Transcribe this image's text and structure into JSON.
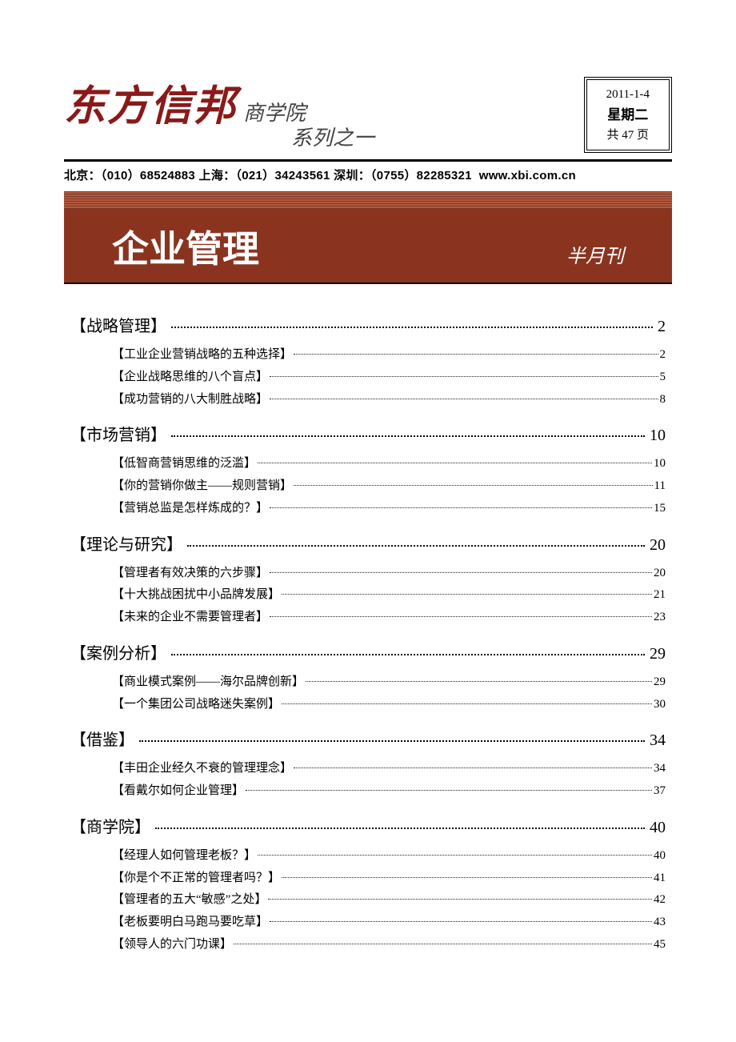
{
  "header": {
    "brand": "东方信邦",
    "subtitle1": "商学院",
    "subtitle2": "系列之一",
    "date": "2011-1-4",
    "weekday": "星期二",
    "pages": "共 47 页"
  },
  "contact": {
    "beijing_label": "北京：",
    "beijing_phone": "（010）68524883",
    "shanghai_label": " 上海：",
    "shanghai_phone": "（021）34243561",
    "shenzhen_label": " 深圳：",
    "shenzhen_phone": "（0755）82285321",
    "url": "www.xbi.com.cn"
  },
  "banner": {
    "title": "企业管理",
    "subtitle": "半月刊",
    "bg_color": "#8a3420",
    "accent_color": "#c94d30",
    "title_color": "#ffffff"
  },
  "colors": {
    "brand": "#8a1a1a",
    "banner_bg": "#8a3420",
    "banner_stripe1": "#7a3826",
    "banner_stripe2": "#b5593f",
    "text": "#000000",
    "background": "#ffffff"
  },
  "typography": {
    "brand_fontsize": 52,
    "subtitle_fontsize": 26,
    "banner_title_fontsize": 46,
    "banner_sub_fontsize": 24,
    "section_fontsize": 20,
    "item_fontsize": 15,
    "contact_fontsize": 15,
    "datebox_fontsize": 15
  },
  "toc": [
    {
      "title": "【战略管理】",
      "page": "2",
      "items": [
        {
          "title": "【工业企业营销战略的五种选择】",
          "page": "2"
        },
        {
          "title": "【企业战略思维的八个盲点】",
          "page": "5"
        },
        {
          "title": "【成功营销的八大制胜战略】",
          "page": "8"
        }
      ]
    },
    {
      "title": "【市场营销】",
      "page": "10",
      "items": [
        {
          "title": "【低智商营销思维的泛滥】",
          "page": "10"
        },
        {
          "title": "【你的营销你做主——规则营销】",
          "page": "11"
        },
        {
          "title": "【营销总监是怎样炼成的？】",
          "page": "15"
        }
      ]
    },
    {
      "title": "【理论与研究】",
      "page": "20",
      "items": [
        {
          "title": "【管理者有效决策的六步骤】",
          "page": "20"
        },
        {
          "title": "【十大挑战困扰中小品牌发展】",
          "page": "21"
        },
        {
          "title": "【未来的企业不需要管理者】",
          "page": "23"
        }
      ]
    },
    {
      "title": "【案例分析】",
      "page": "29",
      "items": [
        {
          "title": "【商业模式案例——海尔品牌创新】",
          "page": "29"
        },
        {
          "title": "【一个集团公司战略迷失案例】",
          "page": "30"
        }
      ]
    },
    {
      "title": "【借鉴】",
      "page": "34",
      "items": [
        {
          "title": "【丰田企业经久不衰的管理理念】",
          "page": "34"
        },
        {
          "title": "【看戴尔如何企业管理】",
          "page": "37"
        }
      ]
    },
    {
      "title": "【商学院】",
      "page": "40",
      "items": [
        {
          "title": "【经理人如何管理老板？】",
          "page": "40"
        },
        {
          "title": "【你是个不正常的管理者吗？】",
          "page": "41"
        },
        {
          "title": "【管理者的五大“敏感”之处】",
          "page": "42"
        },
        {
          "title": "【老板要明白马跑马要吃草】",
          "page": "43"
        },
        {
          "title": "【领导人的六门功课】",
          "page": "45"
        }
      ]
    }
  ]
}
